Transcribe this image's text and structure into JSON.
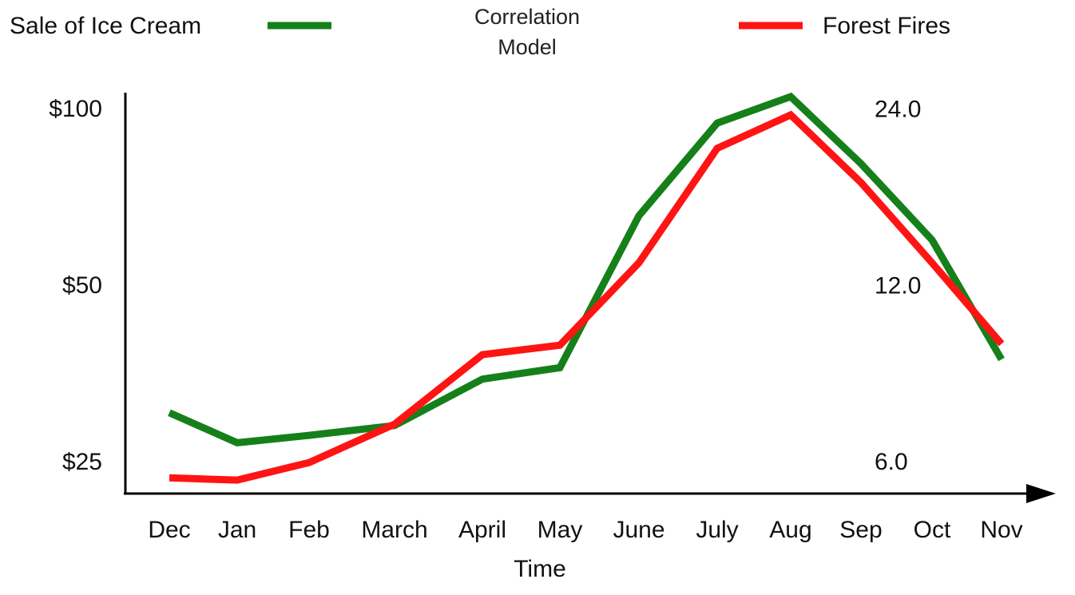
{
  "chart_data": {
    "type": "line",
    "title": "Correlation Model",
    "x_label": "Time",
    "categories": [
      "Dec",
      "Jan",
      "Feb",
      "March",
      "April",
      "May",
      "June",
      "July",
      "Aug",
      "Sep",
      "Oct",
      "Nov"
    ],
    "series": [
      {
        "name": "Sale of Ice Cream",
        "color": "#15801a",
        "values": [
          30.5,
          27.1,
          27.9,
          29.0,
          34.8,
          36.4,
          66.1,
          95.1,
          105.5,
          81.1,
          60.1,
          37.6
        ]
      },
      {
        "name": "Forest Fires",
        "color": "#ff1414",
        "axis": "y2",
        "values": [
          5.67,
          5.62,
          6.02,
          7.0,
          9.2,
          9.55,
          13.2,
          20.7,
          23.6,
          18.1,
          13.2,
          9.6
        ]
      }
    ],
    "ylim": [
      22.2,
      106.5
    ],
    "yticks": [
      {
        "value": 25,
        "label": "$25"
      },
      {
        "value": 50,
        "label": "$50"
      },
      {
        "value": 100,
        "label": "$100"
      }
    ],
    "y2lim": [
      5.33,
      25.6
    ],
    "y2ticks": [
      {
        "value": 6,
        "label": "6.0"
      },
      {
        "value": 12,
        "label": "12.0"
      },
      {
        "value": 24,
        "label": "24.0"
      }
    ],
    "log_scale": true,
    "grid": false
  }
}
